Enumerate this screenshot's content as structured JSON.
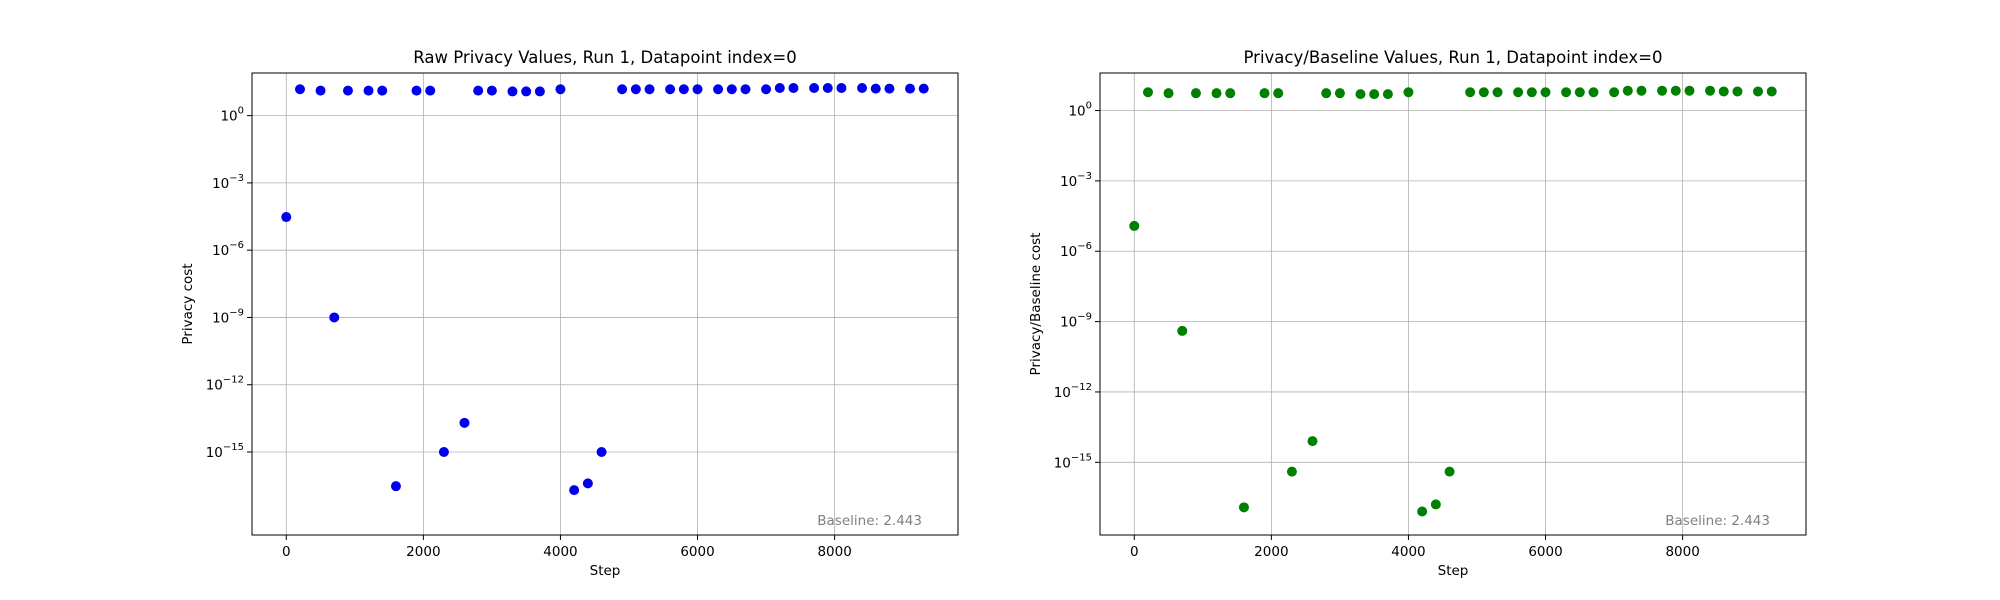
{
  "chart_data": [
    {
      "type": "scatter",
      "title": "Raw Privacy Values, Run 1, Datapoint index=0",
      "xlabel": "Step",
      "ylabel": "Privacy cost",
      "yscale": "log",
      "xlim": [
        -500,
        9800
      ],
      "ylim_exp": [
        -18.7,
        1.9
      ],
      "xticks": [
        "0",
        "2000",
        "4000",
        "6000",
        "8000"
      ],
      "yticks": [
        0,
        -3,
        -6,
        -9,
        -12,
        -15
      ],
      "grid": true,
      "color": "#0000ee",
      "annotation": "Baseline: 2.443",
      "points": [
        [
          0,
          3e-05
        ],
        [
          200,
          15
        ],
        [
          500,
          13
        ],
        [
          700,
          1e-09
        ],
        [
          900,
          13
        ],
        [
          1200,
          13
        ],
        [
          1400,
          13
        ],
        [
          1600,
          3e-17
        ],
        [
          1900,
          13
        ],
        [
          2100,
          13
        ],
        [
          2300,
          1e-15
        ],
        [
          2600,
          2e-14
        ],
        [
          2800,
          13
        ],
        [
          3000,
          13
        ],
        [
          3300,
          12
        ],
        [
          3500,
          12
        ],
        [
          3700,
          12
        ],
        [
          4000,
          15
        ],
        [
          4200,
          2e-17
        ],
        [
          4400,
          4e-17
        ],
        [
          4600,
          1e-15
        ],
        [
          4900,
          15
        ],
        [
          5100,
          15
        ],
        [
          5300,
          15
        ],
        [
          5600,
          15
        ],
        [
          5800,
          15
        ],
        [
          6000,
          15
        ],
        [
          6300,
          15
        ],
        [
          6500,
          15
        ],
        [
          6700,
          15
        ],
        [
          7000,
          15
        ],
        [
          7200,
          17
        ],
        [
          7400,
          17
        ],
        [
          7700,
          17
        ],
        [
          7900,
          17
        ],
        [
          8100,
          17
        ],
        [
          8400,
          17
        ],
        [
          8600,
          16
        ],
        [
          8800,
          16
        ],
        [
          9100,
          16
        ],
        [
          9300,
          16
        ]
      ]
    },
    {
      "type": "scatter",
      "title": "Privacy/Baseline Values, Run 1, Datapoint index=0",
      "xlabel": "Step",
      "ylabel": "Privacy/Baseline cost",
      "yscale": "log",
      "xlim": [
        -500,
        9800
      ],
      "ylim_exp": [
        -18.1,
        1.6
      ],
      "xticks": [
        "0",
        "2000",
        "4000",
        "6000",
        "8000"
      ],
      "yticks": [
        0,
        -3,
        -6,
        -9,
        -12,
        -15
      ],
      "grid": true,
      "color": "#008000",
      "annotation": "Baseline: 2.443",
      "points": [
        [
          0,
          1.2e-05
        ],
        [
          200,
          6
        ],
        [
          500,
          5.5
        ],
        [
          700,
          4e-10
        ],
        [
          900,
          5.5
        ],
        [
          1200,
          5.5
        ],
        [
          1400,
          5.5
        ],
        [
          1600,
          1.2e-17
        ],
        [
          1900,
          5.5
        ],
        [
          2100,
          5.5
        ],
        [
          2300,
          4e-16
        ],
        [
          2600,
          8e-15
        ],
        [
          2800,
          5.5
        ],
        [
          3000,
          5.5
        ],
        [
          3300,
          5
        ],
        [
          3500,
          5
        ],
        [
          3700,
          5
        ],
        [
          4000,
          6
        ],
        [
          4200,
          8e-18
        ],
        [
          4400,
          1.6e-17
        ],
        [
          4600,
          4e-16
        ],
        [
          4900,
          6
        ],
        [
          5100,
          6
        ],
        [
          5300,
          6
        ],
        [
          5600,
          6
        ],
        [
          5800,
          6
        ],
        [
          6000,
          6
        ],
        [
          6300,
          6
        ],
        [
          6500,
          6
        ],
        [
          6700,
          6
        ],
        [
          7000,
          6
        ],
        [
          7200,
          7
        ],
        [
          7400,
          7
        ],
        [
          7700,
          7
        ],
        [
          7900,
          7
        ],
        [
          8100,
          7
        ],
        [
          8400,
          7
        ],
        [
          8600,
          6.5
        ],
        [
          8800,
          6.5
        ],
        [
          9100,
          6.5
        ],
        [
          9300,
          6.5
        ]
      ]
    }
  ]
}
